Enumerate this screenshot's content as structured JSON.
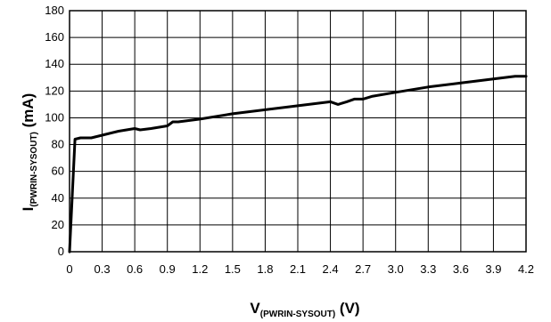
{
  "chart_data": {
    "type": "line",
    "title": "",
    "xlabel": {
      "main": "V",
      "sub": "(PWRIN-SYSOUT)",
      "unit": " (V)"
    },
    "ylabel": {
      "main": "I",
      "sub": "(PWRIN-SYSOUT)",
      "unit": " (mA)"
    },
    "xlim": [
      0,
      4.2
    ],
    "ylim": [
      0,
      180
    ],
    "x_ticks": [
      "0",
      "0.3",
      "0.6",
      "0.9",
      "1.2",
      "1.5",
      "1.8",
      "2.1",
      "2.4",
      "2.7",
      "3.0",
      "3.3",
      "3.6",
      "3.9",
      "4.2"
    ],
    "y_ticks": [
      "0",
      "20",
      "40",
      "60",
      "80",
      "100",
      "120",
      "140",
      "160",
      "180"
    ],
    "grid": true,
    "series": [
      {
        "color": "#000000",
        "x": [
          0,
          0.05,
          0.1,
          0.2,
          0.3,
          0.45,
          0.6,
          0.65,
          0.75,
          0.9,
          0.95,
          1.0,
          1.2,
          1.5,
          1.8,
          2.1,
          2.4,
          2.47,
          2.55,
          2.62,
          2.7,
          2.78,
          3.0,
          3.3,
          3.6,
          3.9,
          4.1,
          4.2
        ],
        "y": [
          0,
          84,
          85,
          85,
          87,
          90,
          92,
          91,
          92,
          94,
          97,
          97,
          99,
          103,
          106,
          109,
          112,
          110,
          112,
          114,
          114,
          116,
          119,
          123,
          126,
          129,
          131,
          131
        ]
      }
    ]
  }
}
